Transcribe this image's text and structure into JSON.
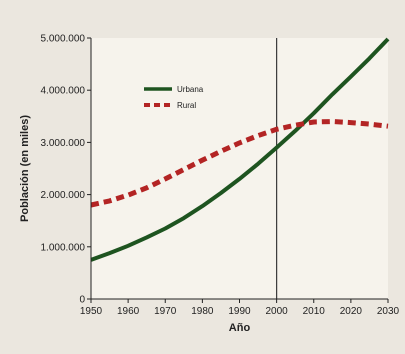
{
  "chart_data": {
    "type": "line",
    "xlabel": "Año",
    "ylabel": "Población (en miles)",
    "xlim": [
      1950,
      2030
    ],
    "ylim": [
      0,
      5000000
    ],
    "x_ticks": [
      1950,
      1960,
      1970,
      1980,
      1990,
      2000,
      2010,
      2020,
      2030
    ],
    "x_tick_labels": [
      "1950",
      "1960",
      "1970",
      "1980",
      "1990",
      "2000",
      "2010",
      "2020",
      "2030"
    ],
    "y_ticks": [
      0,
      1000000,
      2000000,
      3000000,
      4000000,
      5000000
    ],
    "y_tick_labels": [
      "0",
      "1.000.000",
      "2.000.000",
      "3.000.000",
      "4.000.000",
      "5.000.000"
    ],
    "reference_line_x": 2000,
    "grid": false,
    "legend_position": "upper-left",
    "x": [
      1950,
      1955,
      1960,
      1965,
      1970,
      1975,
      1980,
      1985,
      1990,
      1995,
      2000,
      2005,
      2010,
      2015,
      2020,
      2025,
      2030
    ],
    "series": [
      {
        "name": "Urbana",
        "color": "#1e5420",
        "line_style": "solid",
        "values": [
          750000,
          880000,
          1020000,
          1180000,
          1350000,
          1550000,
          1780000,
          2030000,
          2300000,
          2590000,
          2900000,
          3220000,
          3560000,
          3920000,
          4260000,
          4610000,
          4980000
        ]
      },
      {
        "name": "Rural",
        "color": "#b32424",
        "line_style": "dashed",
        "values": [
          1800000,
          1880000,
          1990000,
          2130000,
          2300000,
          2480000,
          2660000,
          2830000,
          2990000,
          3130000,
          3250000,
          3330000,
          3390000,
          3400000,
          3380000,
          3350000,
          3310000
        ]
      }
    ]
  }
}
